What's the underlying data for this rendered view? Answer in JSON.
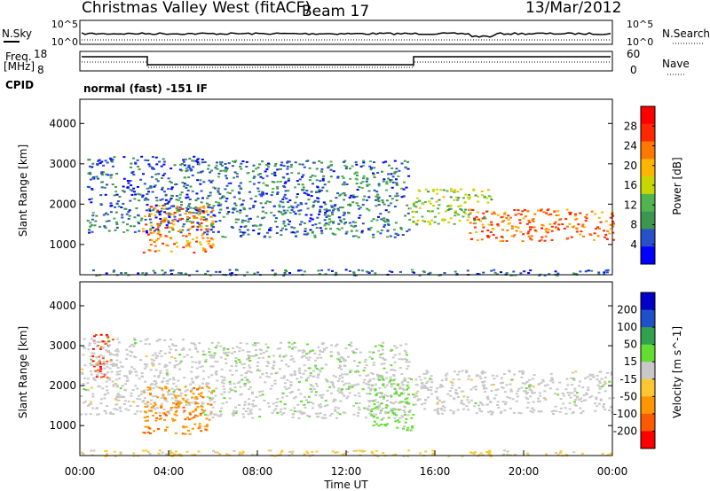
{
  "header": {
    "site": "Christmas Valley West (fitACF)",
    "beam": "Beam 17",
    "date": "13/Mar/2012"
  },
  "top_panels": {
    "nsky_label": "N.Sky",
    "nsearch_label": "N.Search",
    "nsky_ticks": [
      "10^5",
      "10^0"
    ],
    "nsearch_ticks": [
      "10^5",
      "10^0"
    ],
    "freq_label": "Freq.",
    "freq_unit": "[MHz]",
    "freq_ticks": [
      "18",
      "8"
    ],
    "nave_label": "Nave",
    "nave_ticks": [
      "60",
      "0"
    ],
    "cpid_label": "CPID",
    "cpid_value": "normal (fast) -151 IF"
  },
  "chart_data": [
    {
      "type": "heatmap",
      "parameter": "Power",
      "ylabel": "Slant Range [km]",
      "xlabel": "",
      "ylim": [
        250,
        4600
      ],
      "y_ticks": [
        "4000",
        "3000",
        "2000",
        "1000"
      ],
      "x_hours": [
        0,
        24
      ],
      "colorbar": {
        "label": "Power [dB]",
        "ticks": [
          "28",
          "24",
          "20",
          "16",
          "12",
          "8",
          "4"
        ],
        "range": [
          0,
          32
        ],
        "colors": [
          "#0000ff",
          "#2850c8",
          "#3c9650",
          "#50b450",
          "#c8d700",
          "#ffb400",
          "#ff7800",
          "#ff2800",
          "#ff0000"
        ]
      },
      "echo_regions": [
        {
          "hours": [
            0.3,
            5.5
          ],
          "range": [
            1300,
            3200
          ],
          "level": 6
        },
        {
          "hours": [
            2.8,
            6.0
          ],
          "range": [
            800,
            2000
          ],
          "level": 22
        },
        {
          "hours": [
            5.5,
            14.8
          ],
          "range": [
            1200,
            3100
          ],
          "level": 7
        },
        {
          "hours": [
            14.8,
            18.5
          ],
          "range": [
            1500,
            2400
          ],
          "level": 14
        },
        {
          "hours": [
            17.5,
            24.0
          ],
          "range": [
            1100,
            1900
          ],
          "level": 24
        },
        {
          "hours": [
            0.0,
            24.0
          ],
          "range": [
            250,
            400
          ],
          "level": 6
        }
      ]
    },
    {
      "type": "heatmap",
      "parameter": "Velocity",
      "ylabel": "Slant Range [km]",
      "xlabel": "Time UT",
      "ylim": [
        250,
        4600
      ],
      "y_ticks": [
        "4000",
        "3000",
        "2000",
        "1000"
      ],
      "x_ticks": [
        "00:00",
        "04:00",
        "08:00",
        "12:00",
        "16:00",
        "20:00",
        "00:00"
      ],
      "colorbar": {
        "label": "Velocity [m s^-1]",
        "ticks": [
          "200",
          "100",
          "50",
          "15",
          "-15",
          "-50",
          "-100",
          "-200"
        ],
        "range": [
          -250,
          250
        ],
        "colors": [
          "#ff0000",
          "#ff5a00",
          "#ff9600",
          "#ffc832",
          "#c8c8c8",
          "#64dc32",
          "#32a050",
          "#1e50c8",
          "#0000c8"
        ]
      },
      "echo_regions": [
        {
          "hours": [
            0.5,
            1.5
          ],
          "range": [
            2200,
            3300
          ],
          "value": -200
        },
        {
          "hours": [
            0.0,
            5.5
          ],
          "range": [
            1300,
            3200
          ],
          "value": 0
        },
        {
          "hours": [
            2.8,
            6.0
          ],
          "range": [
            800,
            2000
          ],
          "value": -120
        },
        {
          "hours": [
            5.5,
            14.8
          ],
          "range": [
            1200,
            3100
          ],
          "value": 5
        },
        {
          "hours": [
            13.0,
            15.0
          ],
          "range": [
            900,
            2200
          ],
          "value": 40
        },
        {
          "hours": [
            15.0,
            24.0
          ],
          "range": [
            1300,
            2400
          ],
          "value": 0
        },
        {
          "hours": [
            0.0,
            24.0
          ],
          "range": [
            250,
            400
          ],
          "value": -40
        }
      ]
    }
  ]
}
